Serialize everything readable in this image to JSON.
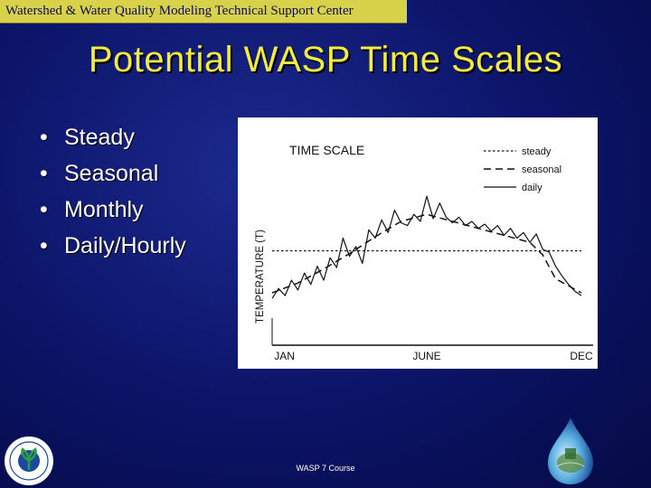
{
  "header": {
    "text": "Watershed & Water Quality Modeling Technical Support Center"
  },
  "slide": {
    "title": "Potential WASP Time Scales",
    "bullets": [
      {
        "marker": "•",
        "text": "Steady"
      },
      {
        "marker": "•",
        "text": "Seasonal"
      },
      {
        "marker": "•",
        "text": "Monthly"
      },
      {
        "marker": "•",
        "text": "Daily/Hourly"
      }
    ]
  },
  "footer": {
    "text": "WASP 7 Course"
  },
  "logos": {
    "left": "epa-seal",
    "right": "water-drop-globe"
  },
  "colors": {
    "background": "#0b1366",
    "header_bar": "#d8d24a",
    "title": "#f4ec3c",
    "bullet_text": "#ffffff"
  },
  "chart_data": {
    "type": "line",
    "title": "TIME SCALE",
    "ylabel": "TEMPERATURE (T)",
    "xlabel": "",
    "x_tick_labels": [
      "JAN",
      "JUNE",
      "DEC"
    ],
    "xlim": [
      0,
      12
    ],
    "ylim": [
      0,
      10
    ],
    "legend_position": "top-right",
    "grid": false,
    "series": [
      {
        "name": "steady",
        "style": "dotted",
        "x": [
          0,
          12
        ],
        "y": [
          5.0,
          5.0
        ]
      },
      {
        "name": "seasonal",
        "style": "dashed",
        "x": [
          0,
          1,
          2,
          3,
          4,
          5,
          6,
          7,
          8,
          9,
          10,
          10.5,
          11,
          12
        ],
        "y": [
          2.0,
          2.7,
          3.7,
          4.8,
          6.0,
          7.1,
          7.6,
          7.1,
          6.6,
          6.1,
          5.6,
          4.7,
          3.0,
          2.0
        ]
      },
      {
        "name": "daily",
        "style": "solid",
        "x": [
          0,
          0.25,
          0.5,
          0.75,
          1,
          1.25,
          1.5,
          1.75,
          2,
          2.25,
          2.5,
          2.75,
          3,
          3.25,
          3.5,
          3.75,
          4,
          4.25,
          4.5,
          4.75,
          5,
          5.25,
          5.5,
          5.75,
          6,
          6.25,
          6.5,
          6.75,
          7,
          7.25,
          7.5,
          7.75,
          8,
          8.25,
          8.5,
          8.75,
          9,
          9.25,
          9.5,
          9.75,
          10,
          10.25,
          10.5,
          10.75,
          11,
          11.25,
          11.5,
          11.75,
          12
        ],
        "y": [
          1.6,
          2.3,
          1.8,
          2.9,
          2.2,
          3.4,
          2.6,
          3.9,
          2.9,
          4.5,
          3.8,
          5.9,
          4.6,
          5.3,
          4.1,
          6.5,
          5.9,
          7.2,
          6.3,
          7.9,
          7.0,
          6.8,
          7.6,
          7.1,
          8.9,
          7.3,
          8.4,
          7.4,
          7.0,
          7.4,
          6.8,
          7.1,
          6.6,
          6.9,
          6.4,
          6.8,
          6.1,
          6.6,
          5.9,
          6.3,
          5.6,
          6.2,
          5.1,
          4.9,
          3.9,
          3.2,
          2.6,
          2.1,
          1.8
        ]
      }
    ]
  }
}
